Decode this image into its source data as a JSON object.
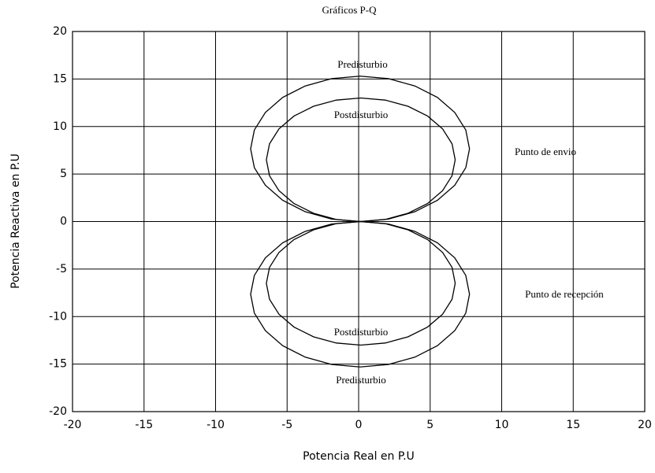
{
  "chart_data": {
    "type": "line",
    "title": "Gráficos P-Q",
    "xlabel": "Potencia Real en P.U",
    "ylabel": "Potencia Reactiva en P.U",
    "xlim": [
      -20,
      20
    ],
    "ylim": [
      -20,
      20
    ],
    "xticks": [
      -20,
      -15,
      -10,
      -5,
      0,
      5,
      10,
      15,
      20
    ],
    "yticks": [
      -20,
      -15,
      -10,
      -5,
      0,
      5,
      10,
      15,
      20
    ],
    "grid": true,
    "annotations": [
      "Predisturbio",
      "Postdisturbio",
      "Punto de envio",
      "Punto de recepción",
      "Postdisturbio",
      "Predisturbio"
    ],
    "series": [
      {
        "color": "#000000",
        "x": [
          0.1,
          2.08,
          3.93,
          5.51,
          6.72,
          7.49,
          7.75,
          7.49,
          6.72,
          5.51,
          3.93,
          2.08,
          0.1,
          -1.88,
          -3.73,
          -5.31,
          -6.52,
          -7.29,
          -7.55,
          -7.29,
          -6.52,
          -5.31,
          -3.73,
          -1.88,
          0.1
        ],
        "values": [
          0,
          0.26,
          1.03,
          2.24,
          3.82,
          5.67,
          7.65,
          9.63,
          11.48,
          13.06,
          14.27,
          15.04,
          15.3,
          15.04,
          14.27,
          13.06,
          11.48,
          9.63,
          7.65,
          5.67,
          3.82,
          2.24,
          1.03,
          0.26,
          0
        ]
      },
      {
        "color": "#000000",
        "x": [
          0.15,
          1.86,
          3.45,
          4.82,
          5.87,
          6.53,
          6.75,
          6.53,
          5.87,
          4.82,
          3.45,
          1.86,
          0.15,
          -1.56,
          -3.15,
          -4.52,
          -5.57,
          -6.23,
          -6.45,
          -6.23,
          -5.57,
          -4.52,
          -3.15,
          -1.56,
          0.15
        ],
        "values": [
          0,
          0.22,
          0.87,
          1.9,
          3.25,
          4.82,
          6.5,
          8.18,
          9.75,
          11.1,
          12.13,
          12.78,
          13.0,
          12.78,
          12.13,
          11.1,
          9.75,
          8.18,
          6.5,
          4.82,
          3.25,
          1.9,
          0.87,
          0.22,
          0
        ]
      },
      {
        "color": "#000000",
        "x": [
          0.1,
          2.08,
          3.93,
          5.51,
          6.72,
          7.49,
          7.75,
          7.49,
          6.72,
          5.51,
          3.93,
          2.08,
          0.1,
          -1.88,
          -3.73,
          -5.31,
          -6.52,
          -7.29,
          -7.55,
          -7.29,
          -6.52,
          -5.31,
          -3.73,
          -1.88,
          0.1
        ],
        "values": [
          0,
          -0.26,
          -1.03,
          -2.24,
          -3.82,
          -5.67,
          -7.65,
          -9.63,
          -11.48,
          -13.06,
          -14.27,
          -15.04,
          -15.3,
          -15.04,
          -14.27,
          -13.06,
          -11.48,
          -9.63,
          -7.65,
          -5.67,
          -3.82,
          -2.24,
          -1.03,
          -0.26,
          0
        ]
      },
      {
        "color": "#000000",
        "x": [
          0.15,
          1.86,
          3.45,
          4.82,
          5.87,
          6.53,
          6.75,
          6.53,
          5.87,
          4.82,
          3.45,
          1.86,
          0.15,
          -1.56,
          -3.15,
          -4.52,
          -5.57,
          -6.23,
          -6.45,
          -6.23,
          -5.57,
          -4.52,
          -3.15,
          -1.56,
          0.15
        ],
        "values": [
          0,
          -0.22,
          -0.87,
          -1.9,
          -3.25,
          -4.82,
          -6.5,
          -8.18,
          -9.75,
          -11.1,
          -12.13,
          -12.78,
          -13.0,
          -12.78,
          -12.13,
          -11.1,
          -9.75,
          -8.18,
          -6.5,
          -4.82,
          -3.25,
          -1.9,
          -0.87,
          -0.22,
          0
        ]
      }
    ]
  }
}
